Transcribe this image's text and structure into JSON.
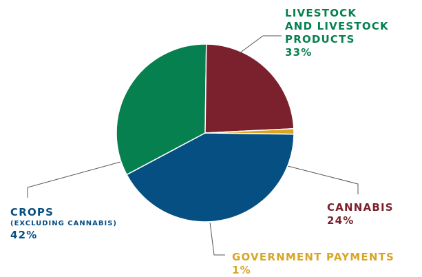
{
  "chart_data": {
    "type": "pie",
    "slices": [
      {
        "key": "livestock",
        "label_lines": [
          "LIVESTOCK",
          "AND LIVESTOCK",
          "PRODUCTS"
        ],
        "value": 33,
        "percent_label": "33%",
        "color": "#06804f"
      },
      {
        "key": "cannabis",
        "label_lines": [
          "CANNABIS"
        ],
        "value": 24,
        "percent_label": "24%",
        "color": "#7a212d"
      },
      {
        "key": "government",
        "label_lines": [
          "GOVERNMENT PAYMENTS"
        ],
        "value": 1,
        "percent_label": "1%",
        "color": "#d9a524"
      },
      {
        "key": "crops",
        "label_lines": [
          "CROPS"
        ],
        "sublabel": "(EXCLUDING CANNABIS)",
        "value": 42,
        "percent_label": "42%",
        "color": "#054f82"
      }
    ]
  }
}
